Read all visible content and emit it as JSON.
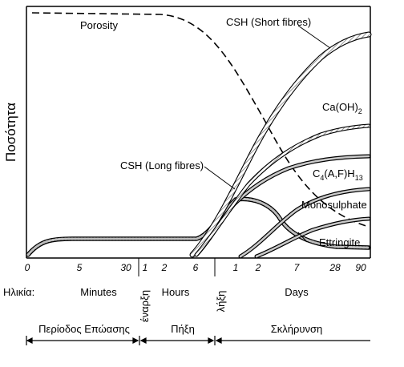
{
  "y_axis_label": "Ποσότητα",
  "curves": {
    "porosity": "Porosity",
    "csh_short": "CSH (Short fibres)",
    "caoh2_main": "Ca(OH)",
    "caoh2_sub": "2",
    "csh_long": "CSH (Long fibres)",
    "c4af_c": "C",
    "c4af_sub4": "4",
    "c4af_mid": "(A,F)H",
    "c4af_sub13": "13",
    "monosulphate": "Monosulphate",
    "ettringite": "Ettringite"
  },
  "ticks": {
    "minutes": [
      "0",
      "5",
      "30"
    ],
    "hours": [
      "1",
      "2",
      "6"
    ],
    "days": [
      "1",
      "2",
      "7",
      "28",
      "90"
    ]
  },
  "age_row": {
    "label": "Ηλικία:",
    "minutes": "Minutes",
    "hours": "Hours",
    "days": "Days"
  },
  "markers": {
    "start": "έναρξη",
    "end": "λήξη"
  },
  "periods": {
    "dormant": "Περίοδος Επώασης",
    "setting": "Πήξη",
    "hardening": "Σκλήρυνση"
  },
  "colors": {
    "ink": "#000000",
    "background": "#ffffff",
    "hatch": "#9a9a9a"
  }
}
